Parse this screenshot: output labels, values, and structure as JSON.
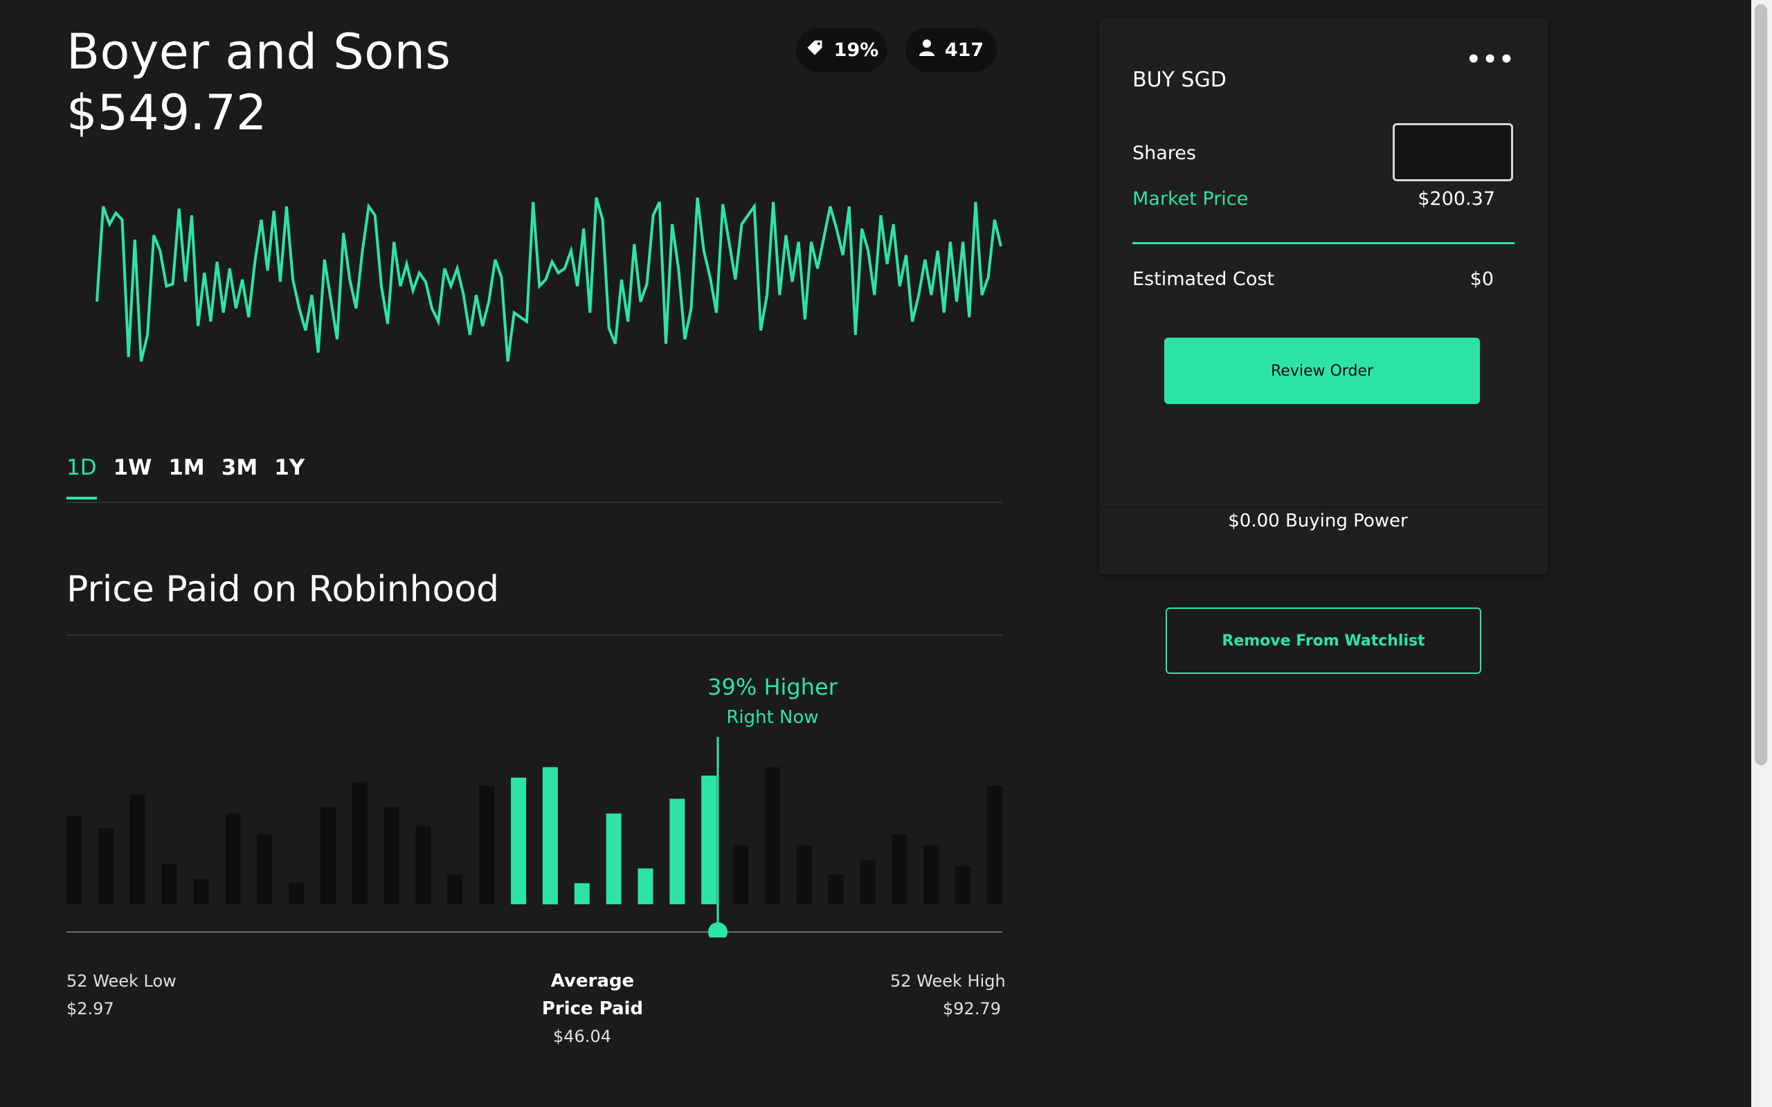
{
  "header": {
    "company": "Boyer and Sons",
    "price": "$549.72"
  },
  "pills": {
    "tag_value": "19%",
    "tag_icon": "tag-icon",
    "people_value": "417",
    "people_icon": "person-icon"
  },
  "colors": {
    "accent": "#2de3a8",
    "background": "#1b1b1b",
    "bar_inactive": "#0e0e0e"
  },
  "tabs": [
    "1D",
    "1W",
    "1M",
    "3M",
    "1Y"
  ],
  "active_tab": "1D",
  "price_paid": {
    "title": "Price Paid on Robinhood",
    "higher_pct": "39% Higher",
    "higher_sub": "Right Now",
    "low_label": "52 Week Low",
    "low_value": "$2.97",
    "avg_label": "Average Price Paid",
    "avg_value": "$46.04",
    "high_label": "52 Week High",
    "high_value": "$92.79"
  },
  "order": {
    "title": "BUY SGD",
    "menu_icon": "more-dots-icon",
    "shares_label": "Shares",
    "shares_value": "",
    "market_label": "Market Price",
    "market_value": "$200.37",
    "est_label": "Estimated Cost",
    "est_value": "$0",
    "review_label": "Review Order",
    "buying_power": "$0.00 Buying Power"
  },
  "watchlist_button": "Remove From Watchlist",
  "chart_data": [
    {
      "type": "line",
      "series": [
        {
          "values": [
            45,
            88,
            80,
            85,
            82,
            20,
            73,
            18,
            30,
            75,
            68,
            52,
            53,
            87,
            54,
            84,
            34,
            58,
            36,
            63,
            40,
            60,
            42,
            55,
            38,
            63,
            82,
            59,
            86,
            54,
            88,
            55,
            42,
            32,
            48,
            22,
            64,
            46,
            28,
            76,
            55,
            42,
            68,
            88,
            84,
            52,
            35,
            72,
            52,
            62,
            50,
            58,
            54,
            42,
            36,
            60,
            52,
            60,
            48,
            30,
            48,
            34,
            45,
            64,
            56,
            18,
            40,
            38,
            36,
            90,
            52,
            55,
            63,
            58,
            60,
            68,
            52,
            78,
            40,
            92,
            82,
            33,
            26,
            55,
            36,
            71,
            45,
            53,
            84,
            90,
            26,
            80,
            60,
            28,
            42,
            92,
            68,
            56,
            40,
            89,
            72,
            55,
            80,
            84,
            88,
            32,
            48,
            90,
            48,
            75,
            54,
            72,
            37,
            72,
            60,
            74,
            88,
            78,
            66,
            88,
            30,
            78,
            68,
            48,
            84,
            62,
            80,
            52,
            66,
            36,
            48,
            64,
            48,
            68,
            40,
            72,
            45,
            72,
            38,
            90,
            48,
            56,
            82,
            70
          ]
        }
      ]
    },
    {
      "type": "bar",
      "values": [
        42,
        36,
        52,
        19,
        12,
        43,
        33,
        10,
        46,
        58,
        46,
        37,
        14,
        56,
        60,
        65,
        10,
        43,
        17,
        50,
        61,
        28,
        65,
        28,
        14,
        21,
        33,
        28,
        18,
        56
      ],
      "highlight_indices": [
        14,
        15,
        16,
        17,
        18,
        19,
        20
      ]
    }
  ]
}
